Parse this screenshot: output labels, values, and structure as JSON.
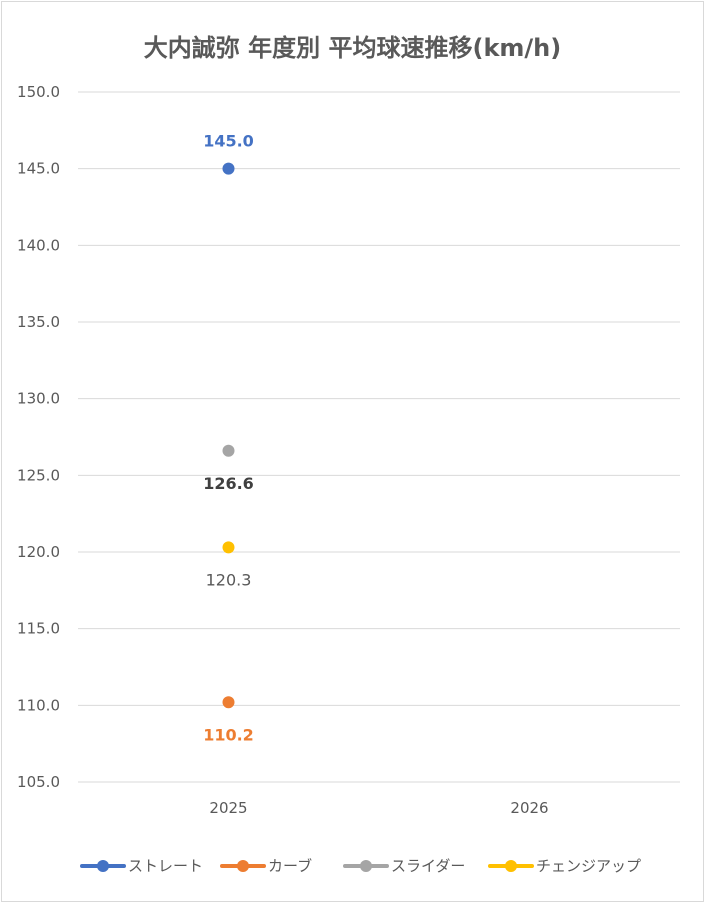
{
  "chart_data": {
    "type": "line",
    "title": "大内誠弥 年度別 平均球速推移(km/h)",
    "categories": [
      "2025",
      "2026"
    ],
    "ylim": [
      105.0,
      150.0
    ],
    "yticks": [
      "150.0",
      "145.0",
      "140.0",
      "135.0",
      "130.0",
      "125.0",
      "120.0",
      "115.0",
      "110.0",
      "105.0"
    ],
    "grid": true,
    "legend_position": "bottom",
    "series": [
      {
        "name": "ストレート",
        "color": "#4472c4",
        "values": [
          145.0,
          null
        ],
        "labels": [
          "145.0",
          ""
        ],
        "label_pos": "above",
        "label_bold": true
      },
      {
        "name": "カーブ",
        "color": "#ed7d31",
        "values": [
          110.2,
          null
        ],
        "labels": [
          "110.2",
          ""
        ],
        "label_pos": "below",
        "label_bold": true
      },
      {
        "name": "スライダー",
        "color": "#a5a5a5",
        "values": [
          126.6,
          null
        ],
        "labels": [
          "126.6",
          ""
        ],
        "label_pos": "below",
        "label_bold": true,
        "label_color": "#404040"
      },
      {
        "name": "チェンジアップ",
        "color": "#ffc000",
        "values": [
          120.3,
          null
        ],
        "labels": [
          "120.3",
          ""
        ],
        "label_pos": "below",
        "label_bold": false,
        "label_color": "#595959"
      }
    ]
  }
}
